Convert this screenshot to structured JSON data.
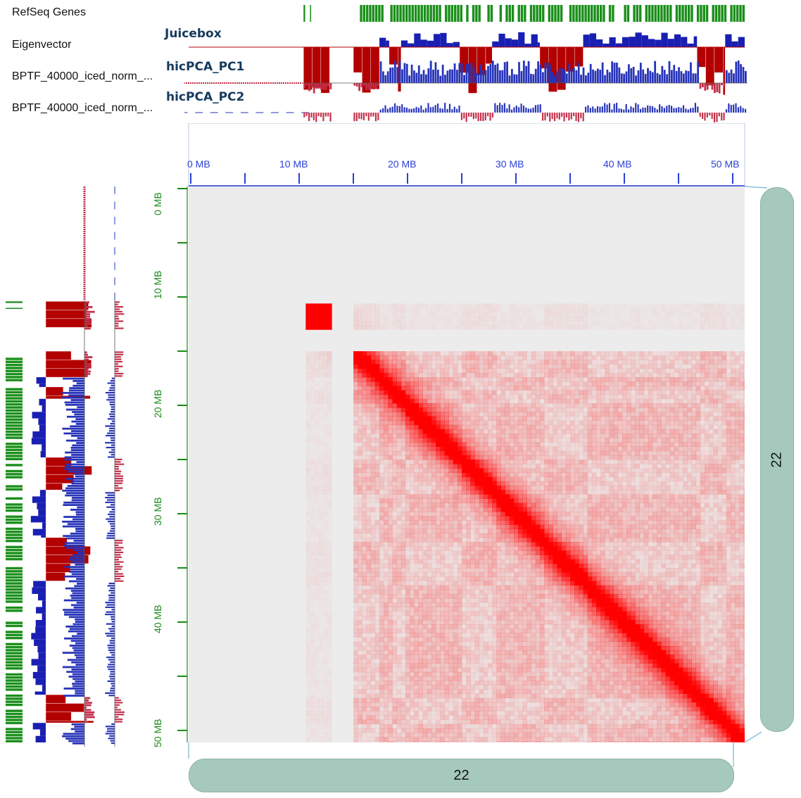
{
  "track_labels": [
    "RefSeq Genes",
    "Eigenvector",
    "BPTF_40000_iced_norm_...",
    "BPTF_40000_iced_norm_..."
  ],
  "overlay_labels": {
    "juicebox": "Juicebox",
    "pc1": "hicPCA_PC1",
    "pc2": "hicPCA_PC2"
  },
  "x_axis": {
    "ticks": [
      "0 MB",
      "10 MB",
      "20 MB",
      "30 MB",
      "40 MB",
      "50 MB"
    ],
    "color": "#2a3fd6"
  },
  "y_axis": {
    "ticks": [
      "0 MB",
      "10 MB",
      "20 MB",
      "30 MB",
      "40 MB",
      "50 MB"
    ],
    "color": "#1a8a1a"
  },
  "chromosome": {
    "x_label": "22",
    "y_label": "22"
  },
  "colors": {
    "gene": "#1a8f1a",
    "eigen_negative": "#b30000",
    "eigen_positive": "#1a1fb3",
    "pc_negative": "#c2304a",
    "pc_positive": "#2633b8",
    "heatmap_high": "#ff0000",
    "heatmap_background": "#ececec",
    "chrom_pill": "#a6c9bd"
  },
  "chart_data": {
    "type": "heatmap",
    "title": "",
    "xlabel": "",
    "ylabel": "",
    "xlim": [
      0,
      51.3
    ],
    "ylim": [
      0,
      51.3
    ],
    "units": "MB",
    "masked_regions_mb": [
      [
        0,
        10.5
      ],
      [
        13.2,
        15.1
      ]
    ],
    "interaction_blocks_mb": [
      [
        10.5,
        13.2
      ],
      [
        15.1,
        51.3
      ]
    ],
    "compartment_sign_intervals_mb": [
      {
        "start": 10.6,
        "end": 13.0,
        "eigenvector": -1,
        "pc1": -1,
        "pc2": -1
      },
      {
        "start": 15.2,
        "end": 17.6,
        "eigenvector": -1,
        "pc1": -1,
        "pc2": -1
      },
      {
        "start": 17.6,
        "end": 18.5,
        "eigenvector": 1,
        "pc1": 1,
        "pc2": 1
      },
      {
        "start": 18.5,
        "end": 19.6,
        "eigenvector": -1,
        "pc1": 1,
        "pc2": 1
      },
      {
        "start": 19.6,
        "end": 25.0,
        "eigenvector": 1,
        "pc1": 1,
        "pc2": 1
      },
      {
        "start": 25.0,
        "end": 28.0,
        "eigenvector": -1,
        "pc1": 1,
        "pc2": -1
      },
      {
        "start": 28.0,
        "end": 32.4,
        "eigenvector": 1,
        "pc1": 1,
        "pc2": 1
      },
      {
        "start": 32.4,
        "end": 36.4,
        "eigenvector": -1,
        "pc1": 1,
        "pc2": -1
      },
      {
        "start": 36.4,
        "end": 46.9,
        "eigenvector": 1,
        "pc1": 1,
        "pc2": 1
      },
      {
        "start": 46.9,
        "end": 49.5,
        "eigenvector": -1,
        "pc1": -1,
        "pc2": -1
      },
      {
        "start": 49.5,
        "end": 51.3,
        "eigenvector": 1,
        "pc1": 1,
        "pc2": 1
      }
    ]
  }
}
